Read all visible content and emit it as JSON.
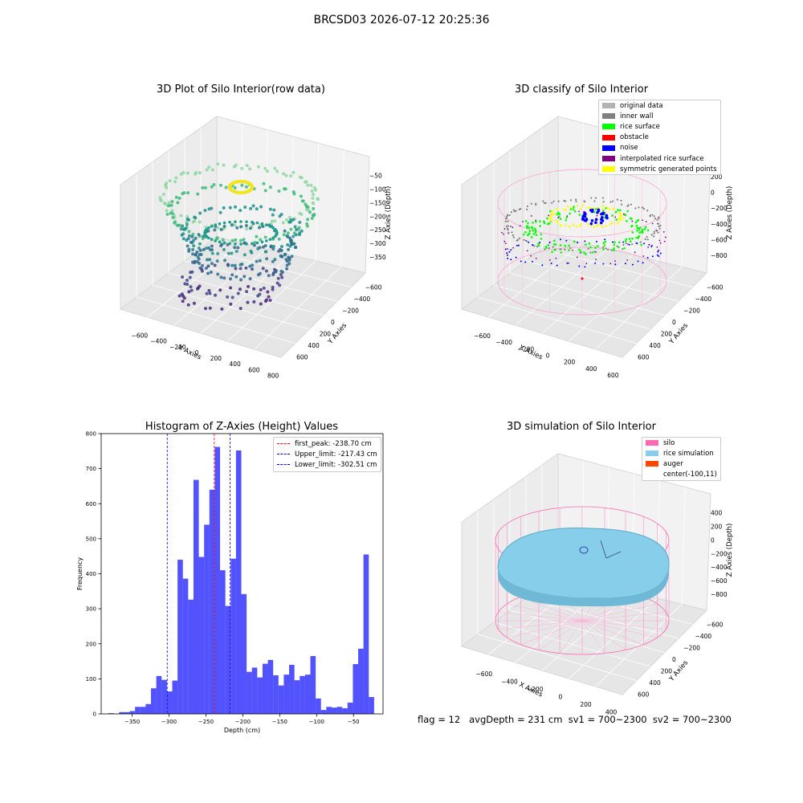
{
  "figure": {
    "suptitle": "BRCSD03 2026-07-12 20:25:36",
    "footer": "flag = 12   avgDepth = 231 cm  sv1 = 700~2300  sv2 = 700~2300"
  },
  "panels": {
    "raw": {
      "title": "3D Plot of Silo Interior(row data)",
      "xlabel": "X Axies",
      "ylabel": "Y Axies",
      "zlabel": "Z Axies (Depth)",
      "xticks": [
        "−600",
        "−400",
        "−200",
        "0",
        "200",
        "400",
        "600",
        "800"
      ],
      "yticks": [
        "−600",
        "−400",
        "−200",
        "0",
        "200",
        "400",
        "600"
      ],
      "zticks": [
        "−50",
        "−100",
        "−150",
        "−200",
        "−250",
        "−300",
        "−350"
      ]
    },
    "classify": {
      "title": "3D classify of Silo Interior",
      "xlabel": "X Axies",
      "ylabel": "Y Axies",
      "zlabel": "Z Axies (Depth)",
      "xticks": [
        "−600",
        "−400",
        "−200",
        "0",
        "200",
        "400",
        "600"
      ],
      "yticks": [
        "−600",
        "−400",
        "−200",
        "0",
        "200",
        "400",
        "600"
      ],
      "zticks": [
        "200",
        "0",
        "−200",
        "−400",
        "−600",
        "−800"
      ],
      "legend": [
        {
          "label": "original data",
          "color": "#b3b3b3"
        },
        {
          "label": "inner wall",
          "color": "#808080"
        },
        {
          "label": "rice surface",
          "color": "#00ff00"
        },
        {
          "label": "obstacle",
          "color": "#ff0000"
        },
        {
          "label": "noise",
          "color": "#0000ff"
        },
        {
          "label": "interpolated rice surface",
          "color": "#800080"
        },
        {
          "label": "symmetric generated points",
          "color": "#ffff00"
        }
      ]
    },
    "simulation": {
      "title": "3D simulation of Silo Interior",
      "xlabel": "X Axies",
      "ylabel": "Y Axies",
      "zlabel": "Z Axies (Depth)",
      "xticks": [
        "−600",
        "−400",
        "−200",
        "0",
        "200",
        "400"
      ],
      "yticks": [
        "−600",
        "−400",
        "−200",
        "0",
        "200",
        "400",
        "600"
      ],
      "zticks": [
        "400",
        "200",
        "0",
        "−200",
        "−400",
        "−600",
        "−800"
      ],
      "legend": [
        {
          "label": "silo",
          "color": "#ff69b4"
        },
        {
          "label": "rice simulation",
          "color": "#87ceeb"
        },
        {
          "label": "auger",
          "color": "#ff4500"
        },
        {
          "label": "center(-100,11)",
          "color": ""
        }
      ]
    }
  },
  "chart_data": {
    "type": "bar",
    "title": "Histogram of Z-Axies (Height) Values",
    "xlabel": "Depth (cm)",
    "ylabel": "Frequency",
    "xlim": [
      -392,
      -10
    ],
    "ylim": [
      0,
      800
    ],
    "xticks": [
      -350,
      -300,
      -250,
      -200,
      -150,
      -100,
      -50
    ],
    "yticks": [
      0,
      100,
      200,
      300,
      400,
      500,
      600,
      700,
      800
    ],
    "bar_color": "#0000ff",
    "bin_width": 7.2,
    "bins": [
      {
        "x": -378.5,
        "count": 2
      },
      {
        "x": -371.3,
        "count": 0
      },
      {
        "x": -364.1,
        "count": 5
      },
      {
        "x": -356.9,
        "count": 5
      },
      {
        "x": -349.7,
        "count": 8
      },
      {
        "x": -342.5,
        "count": 20
      },
      {
        "x": -335.3,
        "count": 20
      },
      {
        "x": -328.1,
        "count": 28
      },
      {
        "x": -320.9,
        "count": 73
      },
      {
        "x": -313.7,
        "count": 108
      },
      {
        "x": -306.5,
        "count": 97
      },
      {
        "x": -299.3,
        "count": 64
      },
      {
        "x": -292.1,
        "count": 95
      },
      {
        "x": -284.9,
        "count": 440
      },
      {
        "x": -277.7,
        "count": 386
      },
      {
        "x": -270.5,
        "count": 326
      },
      {
        "x": -263.3,
        "count": 668
      },
      {
        "x": -256.1,
        "count": 448
      },
      {
        "x": -248.9,
        "count": 540
      },
      {
        "x": -241.7,
        "count": 640
      },
      {
        "x": -234.5,
        "count": 762
      },
      {
        "x": -227.3,
        "count": 410
      },
      {
        "x": -220.1,
        "count": 308
      },
      {
        "x": -212.9,
        "count": 443
      },
      {
        "x": -205.7,
        "count": 752
      },
      {
        "x": -198.5,
        "count": 342
      },
      {
        "x": -191.3,
        "count": 120
      },
      {
        "x": -184.1,
        "count": 132
      },
      {
        "x": -176.9,
        "count": 104
      },
      {
        "x": -169.7,
        "count": 143
      },
      {
        "x": -162.5,
        "count": 154
      },
      {
        "x": -155.3,
        "count": 110
      },
      {
        "x": -148.1,
        "count": 81
      },
      {
        "x": -140.9,
        "count": 112
      },
      {
        "x": -133.7,
        "count": 140
      },
      {
        "x": -126.5,
        "count": 96
      },
      {
        "x": -119.3,
        "count": 108
      },
      {
        "x": -112.1,
        "count": 112
      },
      {
        "x": -104.9,
        "count": 165
      },
      {
        "x": -97.7,
        "count": 44
      },
      {
        "x": -90.5,
        "count": 11
      },
      {
        "x": -83.3,
        "count": 20
      },
      {
        "x": -76.1,
        "count": 18
      },
      {
        "x": -68.9,
        "count": 20
      },
      {
        "x": -61.7,
        "count": 16
      },
      {
        "x": -54.5,
        "count": 32
      },
      {
        "x": -47.3,
        "count": 142
      },
      {
        "x": -40.1,
        "count": 186
      },
      {
        "x": -32.9,
        "count": 455
      },
      {
        "x": -25.7,
        "count": 48
      }
    ],
    "vlines": [
      {
        "label": "first_peak: -238.70 cm",
        "x": -238.7,
        "color": "#ff0000"
      },
      {
        "label": "Upper_limit: -217.43 cm",
        "x": -217.43,
        "color": "#0000ff"
      },
      {
        "label": "Lower_limit: -302.51 cm",
        "x": -302.51,
        "color": "#0000ff"
      }
    ]
  }
}
